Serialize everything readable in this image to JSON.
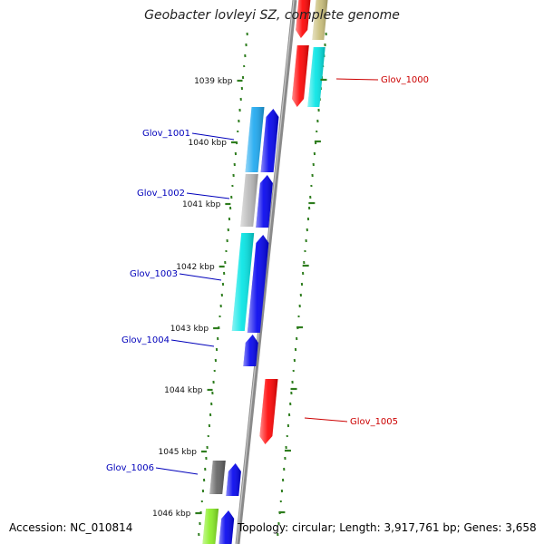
{
  "title": "Geobacter lovleyi SZ, complete genome",
  "accession_text": "Accession: NC_010814",
  "summary_text": "Topology: circular; Length: 3,917,761 bp; Genes: 3,658",
  "colors": {
    "backbone": "#8a8a8a",
    "ruler": "#2e7d1e",
    "forward_label": "#0000bb",
    "reverse_label": "#cc0000"
  },
  "ruler_ticks": [
    {
      "label": "1039 kbp"
    },
    {
      "label": "1040 kbp"
    },
    {
      "label": "1041 kbp"
    },
    {
      "label": "1042 kbp"
    },
    {
      "label": "1043 kbp"
    },
    {
      "label": "1044 kbp"
    },
    {
      "label": "1045 kbp"
    },
    {
      "label": "1046 kbp"
    }
  ],
  "gene_labels": [
    {
      "text": "Glov_1000",
      "strand": "reverse"
    },
    {
      "text": "Glov_1001",
      "strand": "forward"
    },
    {
      "text": "Glov_1002",
      "strand": "forward"
    },
    {
      "text": "Glov_1003",
      "strand": "forward"
    },
    {
      "text": "Glov_1004",
      "strand": "forward"
    },
    {
      "text": "Glov_1005",
      "strand": "reverse"
    },
    {
      "text": "Glov_1006",
      "strand": "forward"
    }
  ]
}
